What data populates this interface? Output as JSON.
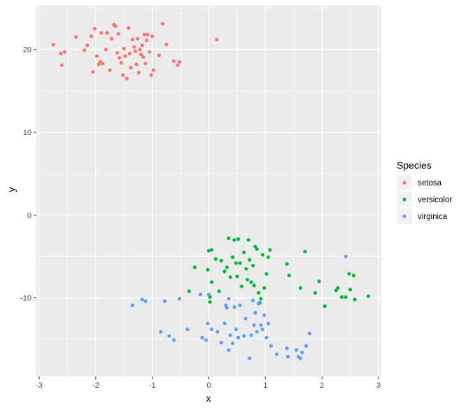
{
  "chart_data": {
    "type": "scatter",
    "xlabel": "x",
    "ylabel": "y",
    "xlim": [
      -3.05,
      3.05
    ],
    "ylim": [
      -19.5,
      25.3
    ],
    "xticks": [
      -3,
      -2,
      -1,
      0,
      1,
      2,
      3
    ],
    "yticks": [
      -10,
      0,
      10,
      20
    ],
    "grid": true,
    "legend": {
      "title": "Species",
      "position": "right"
    },
    "series": [
      {
        "name": "setosa",
        "color": "#F8766D",
        "points": [
          [
            -2.75,
            20.6
          ],
          [
            -2.62,
            19.5
          ],
          [
            -2.6,
            18.1
          ],
          [
            -2.55,
            19.7
          ],
          [
            -2.35,
            21.5
          ],
          [
            -2.2,
            19.9
          ],
          [
            -2.15,
            20.5
          ],
          [
            -2.08,
            21.6
          ],
          [
            -2.05,
            17.3
          ],
          [
            -2.02,
            22.5
          ],
          [
            -1.98,
            19.2
          ],
          [
            -1.95,
            18.2
          ],
          [
            -1.92,
            18.5
          ],
          [
            -1.9,
            22.0
          ],
          [
            -1.88,
            18.3
          ],
          [
            -1.82,
            20.0
          ],
          [
            -1.8,
            22.0
          ],
          [
            -1.75,
            17.5
          ],
          [
            -1.72,
            21.3
          ],
          [
            -1.68,
            23.0
          ],
          [
            -1.65,
            22.8
          ],
          [
            -1.62,
            19.6
          ],
          [
            -1.6,
            21.9
          ],
          [
            -1.58,
            19.0
          ],
          [
            -1.55,
            18.4
          ],
          [
            -1.52,
            16.9
          ],
          [
            -1.5,
            20.1
          ],
          [
            -1.48,
            19.2
          ],
          [
            -1.45,
            16.5
          ],
          [
            -1.42,
            22.6
          ],
          [
            -1.4,
            19.5
          ],
          [
            -1.38,
            17.8
          ],
          [
            -1.35,
            21.2
          ],
          [
            -1.32,
            20.3
          ],
          [
            -1.3,
            19.8
          ],
          [
            -1.28,
            18.2
          ],
          [
            -1.26,
            21.3
          ],
          [
            -1.24,
            17.2
          ],
          [
            -1.22,
            20.0
          ],
          [
            -1.2,
            19.4
          ],
          [
            -1.18,
            20.5
          ],
          [
            -1.16,
            19.1
          ],
          [
            -1.14,
            21.8
          ],
          [
            -1.12,
            18.3
          ],
          [
            -1.1,
            21.1
          ],
          [
            -1.08,
            21.8
          ],
          [
            -1.05,
            19.7
          ],
          [
            -1.02,
            16.9
          ],
          [
            -1.0,
            21.6
          ],
          [
            -0.98,
            17.5
          ],
          [
            -0.88,
            19.3
          ],
          [
            -0.82,
            23.1
          ],
          [
            -0.75,
            20.6
          ],
          [
            -0.62,
            18.6
          ],
          [
            -0.55,
            18.1
          ],
          [
            -0.52,
            18.5
          ],
          [
            0.14,
            21.2
          ]
        ]
      },
      {
        "name": "versicolor",
        "color": "#00BA38",
        "points": [
          [
            -0.35,
            -9.2
          ],
          [
            -0.25,
            -6.3
          ],
          [
            0.0,
            -4.3
          ],
          [
            0.02,
            -9.9
          ],
          [
            0.05,
            -4.2
          ],
          [
            0.05,
            -8.1
          ],
          [
            0.02,
            -10.5
          ],
          [
            0.12,
            -5.3
          ],
          [
            0.18,
            -9.2
          ],
          [
            0.22,
            -5.5
          ],
          [
            -0.02,
            -6.6
          ],
          [
            0.28,
            -6.8
          ],
          [
            0.32,
            -6.3
          ],
          [
            0.35,
            -2.8
          ],
          [
            0.38,
            -7.5
          ],
          [
            0.42,
            -5.1
          ],
          [
            0.45,
            -3.0
          ],
          [
            0.48,
            -5.8
          ],
          [
            0.5,
            -7.4
          ],
          [
            0.52,
            -2.9
          ],
          [
            0.55,
            -5.8
          ],
          [
            0.58,
            -8.6
          ],
          [
            0.62,
            -4.5
          ],
          [
            0.66,
            -6.5
          ],
          [
            0.68,
            -7.8
          ],
          [
            0.7,
            -3.0
          ],
          [
            0.72,
            -5.4
          ],
          [
            0.75,
            -8.1
          ],
          [
            0.78,
            -6.1
          ],
          [
            0.8,
            -8.5
          ],
          [
            0.82,
            -3.8
          ],
          [
            0.85,
            -4.1
          ],
          [
            0.88,
            -9.4
          ],
          [
            0.9,
            -10.6
          ],
          [
            0.92,
            -10.1
          ],
          [
            0.95,
            -4.8
          ],
          [
            0.98,
            -8.8
          ],
          [
            1.02,
            -7.1
          ],
          [
            1.05,
            -5.1
          ],
          [
            1.08,
            -4.2
          ],
          [
            1.38,
            -5.9
          ],
          [
            1.42,
            -7.3
          ],
          [
            1.62,
            -8.8
          ],
          [
            1.7,
            -4.4
          ],
          [
            1.88,
            -9.4
          ],
          [
            1.95,
            -8.0
          ],
          [
            2.05,
            -11.0
          ],
          [
            2.25,
            -9.1
          ],
          [
            2.28,
            -8.8
          ],
          [
            2.35,
            -9.9
          ],
          [
            2.42,
            -9.9
          ],
          [
            2.48,
            -7.1
          ],
          [
            2.5,
            -9.0
          ],
          [
            2.56,
            -7.3
          ],
          [
            2.58,
            -10.2
          ],
          [
            2.82,
            -9.8
          ]
        ]
      },
      {
        "name": "virginica",
        "color": "#619CFF",
        "points": [
          [
            -1.35,
            -10.9
          ],
          [
            -1.18,
            -10.2
          ],
          [
            -1.12,
            -10.4
          ],
          [
            -0.85,
            -14.1
          ],
          [
            -0.78,
            -10.4
          ],
          [
            -0.7,
            -14.6
          ],
          [
            -0.62,
            -15.1
          ],
          [
            -0.52,
            -10.1
          ],
          [
            -0.38,
            -13.8
          ],
          [
            -0.15,
            -9.6
          ],
          [
            -0.12,
            -14.8
          ],
          [
            -0.05,
            -15.1
          ],
          [
            -0.02,
            -13.1
          ],
          [
            0.0,
            -9.6
          ],
          [
            0.05,
            -13.8
          ],
          [
            0.15,
            -14.1
          ],
          [
            0.22,
            -15.4
          ],
          [
            0.28,
            -13.1
          ],
          [
            0.3,
            -10.9
          ],
          [
            0.32,
            -11.2
          ],
          [
            0.35,
            -10.1
          ],
          [
            0.35,
            -16.3
          ],
          [
            0.38,
            -14.5
          ],
          [
            0.42,
            -15.5
          ],
          [
            0.45,
            -11.1
          ],
          [
            0.48,
            -13.8
          ],
          [
            0.52,
            -14.8
          ],
          [
            0.55,
            -10.9
          ],
          [
            0.62,
            -14.6
          ],
          [
            0.65,
            -12.5
          ],
          [
            0.72,
            -17.3
          ],
          [
            0.75,
            -14.5
          ],
          [
            0.78,
            -10.3
          ],
          [
            0.8,
            -13.3
          ],
          [
            0.82,
            -11.8
          ],
          [
            0.85,
            -14.1
          ],
          [
            0.88,
            -10.7
          ],
          [
            0.92,
            -13.3
          ],
          [
            0.95,
            -13.8
          ],
          [
            0.98,
            -12.1
          ],
          [
            1.02,
            -14.8
          ],
          [
            1.05,
            -13.1
          ],
          [
            1.1,
            -15.8
          ],
          [
            1.2,
            -16.8
          ],
          [
            1.38,
            -16.1
          ],
          [
            1.4,
            -17.1
          ],
          [
            1.55,
            -16.3
          ],
          [
            1.58,
            -17.1
          ],
          [
            1.62,
            -17.3
          ],
          [
            1.65,
            -16.6
          ],
          [
            1.72,
            -15.8
          ],
          [
            1.78,
            -14.3
          ],
          [
            2.42,
            -5.0
          ]
        ]
      }
    ]
  }
}
